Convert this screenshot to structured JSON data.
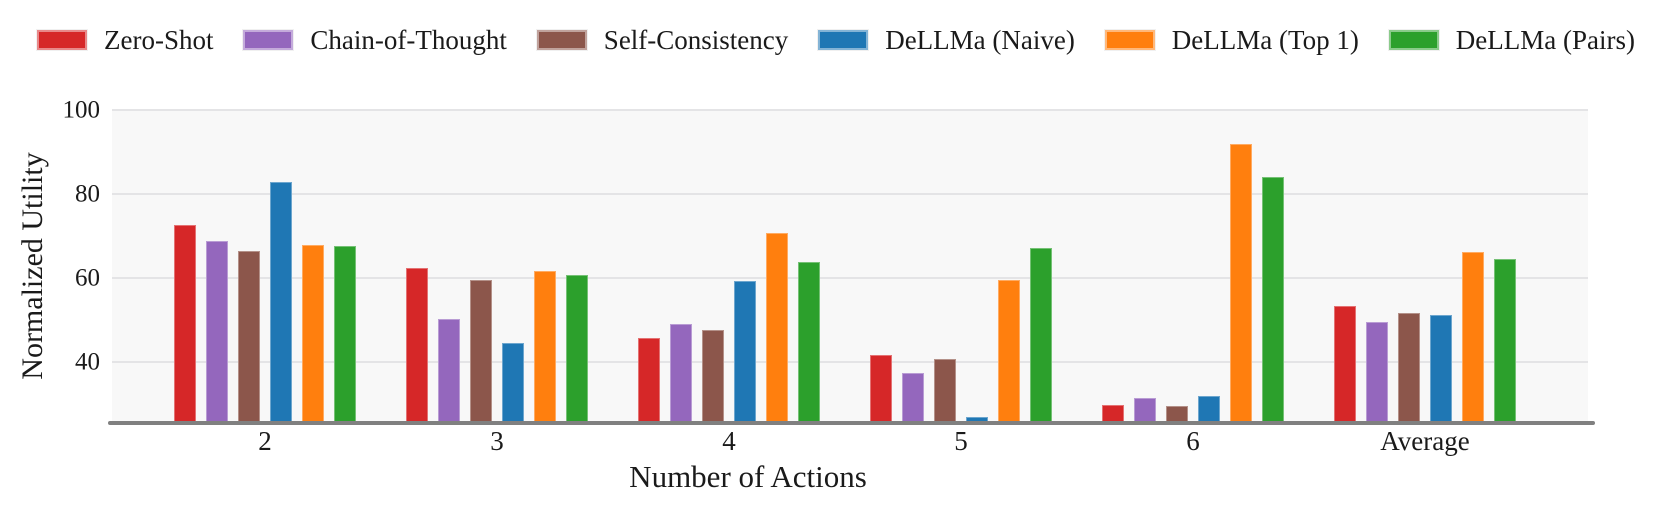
{
  "legend": {
    "items": [
      {
        "label": "Zero-Shot",
        "color": "#d62728"
      },
      {
        "label": "Chain-of-Thought",
        "color": "#9467bd"
      },
      {
        "label": "Self-Consistency",
        "color": "#8c564b"
      },
      {
        "label": "DeLLMa (Naive)",
        "color": "#1f77b4"
      },
      {
        "label": "DeLLMa (Top 1)",
        "color": "#ff7f0e"
      },
      {
        "label": "DeLLMa (Pairs)",
        "color": "#2ca02c"
      }
    ]
  },
  "chart_data": {
    "type": "bar",
    "title": "",
    "xlabel": "Number of Actions",
    "ylabel": "Normalized Utility",
    "categories": [
      "2",
      "3",
      "4",
      "5",
      "6",
      "Average"
    ],
    "series": [
      {
        "name": "Zero-Shot",
        "color": "#d62728",
        "values": [
          72.5,
          62.3,
          45.6,
          41.7,
          29.8,
          53.2
        ]
      },
      {
        "name": "Chain-of-Thought",
        "color": "#9467bd",
        "values": [
          68.7,
          50.1,
          49.1,
          37.4,
          31.3,
          49.4
        ]
      },
      {
        "name": "Self-Consistency",
        "color": "#8c564b",
        "values": [
          66.5,
          59.6,
          47.5,
          40.6,
          29.5,
          51.6
        ]
      },
      {
        "name": "DeLLMa (Naive)",
        "color": "#1f77b4",
        "values": [
          82.9,
          44.4,
          59.2,
          26.9,
          31.9,
          51.2
        ]
      },
      {
        "name": "DeLLMa (Top 1)",
        "color": "#ff7f0e",
        "values": [
          67.8,
          61.7,
          70.6,
          59.4,
          91.8,
          66.2
        ]
      },
      {
        "name": "DeLLMa (Pairs)",
        "color": "#2ca02c",
        "values": [
          67.5,
          60.6,
          63.8,
          67.1,
          84.1,
          64.6
        ]
      }
    ],
    "ylim": [
      25.4,
      100
    ],
    "yticks": [
      40,
      60,
      80,
      100
    ],
    "grid": true,
    "legend_position": "top",
    "plot_background": "#f8f8f8",
    "gridline_color": "#e4e4e6",
    "axis_line_color": "#808080",
    "text_color": "#1a1a1a"
  }
}
